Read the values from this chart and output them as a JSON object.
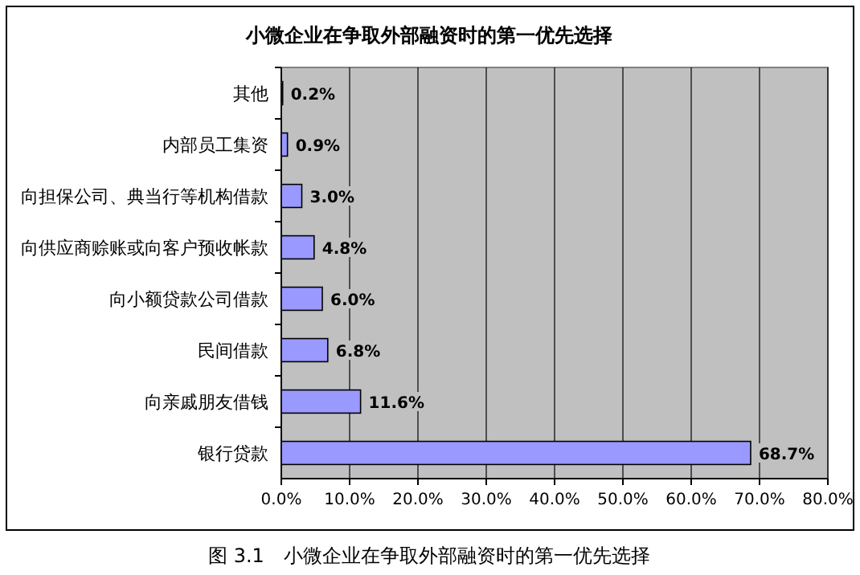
{
  "chart_data": {
    "type": "bar",
    "orientation": "horizontal",
    "title": "小微企业在争取外部融资时的第一优先选择",
    "categories": [
      "其他",
      "内部员工集资",
      "向担保公司、典当行等机构借款",
      "向供应商赊账或向客户预收帐款",
      "向小额贷款公司借款",
      "民间借款",
      "向亲戚朋友借钱",
      "银行贷款"
    ],
    "values": [
      0.2,
      0.9,
      3.0,
      4.8,
      6.0,
      6.8,
      11.6,
      68.7
    ],
    "value_labels": [
      "0.2%",
      "0.9%",
      "3.0%",
      "4.8%",
      "6.0%",
      "6.8%",
      "11.6%",
      "68.7%"
    ],
    "color": "#9999ff",
    "xlim": [
      0,
      80
    ],
    "xticks": [
      {
        "value": 0,
        "label": "0.0%"
      },
      {
        "value": 10,
        "label": "10.0%"
      },
      {
        "value": 20,
        "label": "20.0%"
      },
      {
        "value": 30,
        "label": "30.0%"
      },
      {
        "value": 40,
        "label": "40.0%"
      },
      {
        "value": 50,
        "label": "50.0%"
      },
      {
        "value": 60,
        "label": "60.0%"
      },
      {
        "value": 70,
        "label": "70.0%"
      },
      {
        "value": 80,
        "label": "80.0%"
      }
    ],
    "grid": "x",
    "annotations": [
      "图 3.1　小微企业在争取外部融资时的第一优先选择"
    ]
  }
}
